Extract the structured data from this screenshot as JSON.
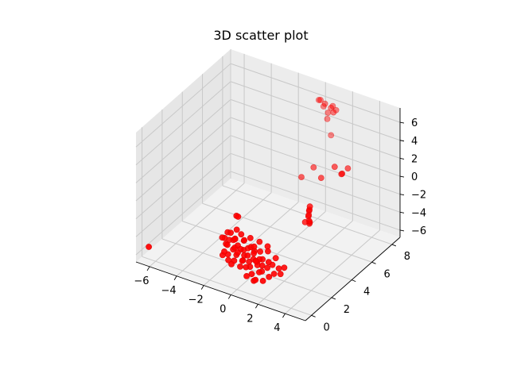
{
  "chart_data": {
    "type": "scatter",
    "projection": "3d",
    "title": "3D scatter plot",
    "xlabel": "",
    "ylabel": "",
    "zlabel": "",
    "xlim": [
      -7,
      5.5
    ],
    "ylim": [
      -0.6,
      8.8
    ],
    "zlim": [
      -6.8,
      7.6
    ],
    "xticks": [
      -6,
      -4,
      -2,
      0,
      2,
      4
    ],
    "yticks": [
      0,
      2,
      4,
      6,
      8
    ],
    "zticks": [
      -6,
      -4,
      -2,
      0,
      2,
      4,
      6
    ],
    "grid": true,
    "color": "#ff0000",
    "series": [
      {
        "points": [
          [
            -6.8,
            0.4,
            -6.0
          ],
          [
            0.4,
            7.6,
            7.0
          ],
          [
            0.6,
            7.5,
            7.2
          ],
          [
            1.0,
            7.4,
            7.1
          ],
          [
            1.5,
            7.5,
            7.0
          ],
          [
            1.3,
            7.6,
            6.6
          ],
          [
            0.6,
            7.8,
            6.2
          ],
          [
            1.0,
            7.7,
            5.8
          ],
          [
            1.6,
            7.7,
            6.4
          ],
          [
            1.7,
            7.3,
            6.6
          ],
          [
            0.8,
            7.9,
            4.8
          ],
          [
            1.0,
            8.0,
            3.0
          ],
          [
            3.2,
            5.4,
            3.2
          ],
          [
            4.1,
            5.5,
            3.4
          ],
          [
            4.0,
            5.0,
            3.2
          ],
          [
            3.9,
            5.2,
            3.0
          ],
          [
            1.2,
            6.0,
            1.5
          ],
          [
            2.5,
            5.0,
            2.0
          ],
          [
            0.6,
            5.6,
            0.5
          ],
          [
            3.3,
            2.8,
            1.4
          ],
          [
            3.1,
            3.0,
            0.6
          ],
          [
            3.0,
            3.1,
            0.0
          ],
          [
            3.1,
            3.0,
            -0.5
          ],
          [
            3.0,
            3.2,
            -0.9
          ],
          [
            2.8,
            3.0,
            -0.8
          ],
          [
            2.9,
            3.3,
            -1.2
          ],
          [
            3.2,
            2.9,
            0.9
          ],
          [
            2.9,
            3.2,
            -0.3
          ],
          [
            -1.0,
            1.3,
            -0.4
          ],
          [
            -0.8,
            1.2,
            -0.3
          ],
          [
            -1.8,
            1.2,
            -3.2
          ],
          [
            -1.6,
            1.4,
            -3.5
          ],
          [
            -1.7,
            1.2,
            -3.8
          ],
          [
            -1.9,
            1.1,
            -3.1
          ],
          [
            -1.5,
            1.1,
            -2.3
          ],
          [
            -1.2,
            1.0,
            -2.1
          ],
          [
            -0.8,
            0.9,
            -2.5
          ],
          [
            -0.5,
            1.1,
            -2.0
          ],
          [
            -0.2,
            1.0,
            -2.4
          ],
          [
            0.1,
            1.2,
            -2.2
          ],
          [
            -1.0,
            1.0,
            -2.8
          ],
          [
            -0.6,
            0.9,
            -3.1
          ],
          [
            -0.3,
            1.1,
            -2.6
          ],
          [
            0.3,
            1.0,
            -2.9
          ],
          [
            0.6,
            0.9,
            -2.6
          ],
          [
            0.9,
            1.1,
            -3.2
          ],
          [
            -1.3,
            0.8,
            -3.3
          ],
          [
            -0.9,
            1.0,
            -3.6
          ],
          [
            -0.4,
            0.9,
            -3.4
          ],
          [
            0.2,
            0.8,
            -3.7
          ],
          [
            0.5,
            1.0,
            -3.5
          ],
          [
            1.0,
            0.9,
            -3.8
          ],
          [
            -1.1,
            1.1,
            -4.0
          ],
          [
            -0.7,
            0.9,
            -4.2
          ],
          [
            -0.2,
            1.0,
            -4.1
          ],
          [
            0.4,
            1.1,
            -4.3
          ],
          [
            0.8,
            0.8,
            -4.0
          ],
          [
            1.2,
            0.9,
            -4.4
          ],
          [
            -1.4,
            1.0,
            -4.6
          ],
          [
            -0.8,
            0.8,
            -4.8
          ],
          [
            -0.3,
            1.0,
            -4.7
          ],
          [
            0.3,
            0.9,
            -5.0
          ],
          [
            0.7,
            1.1,
            -4.8
          ],
          [
            1.1,
            1.0,
            -5.2
          ],
          [
            -1.0,
            0.8,
            -5.3
          ],
          [
            -0.5,
            1.0,
            -5.5
          ],
          [
            0.0,
            0.9,
            -5.2
          ],
          [
            0.5,
            0.8,
            -5.6
          ],
          [
            0.9,
            1.0,
            -5.4
          ],
          [
            -0.6,
            0.9,
            -3.9
          ],
          [
            0.0,
            1.1,
            -3.3
          ],
          [
            0.6,
            1.2,
            -4.6
          ],
          [
            -0.2,
            0.8,
            -4.5
          ],
          [
            1.4,
            1.2,
            -3.0
          ],
          [
            1.6,
            1.0,
            -3.9
          ],
          [
            1.5,
            1.0,
            -4.6
          ],
          [
            1.8,
            1.1,
            -4.2
          ],
          [
            2.0,
            1.0,
            -5.0
          ],
          [
            1.7,
            0.9,
            -5.4
          ],
          [
            2.2,
            1.2,
            -4.5
          ],
          [
            1.9,
            1.3,
            -3.6
          ],
          [
            -1.6,
            0.9,
            -4.3
          ],
          [
            -1.8,
            1.0,
            -4.9
          ],
          [
            -1.3,
            0.9,
            -5.1
          ],
          [
            1.3,
            1.3,
            -2.6
          ],
          [
            -0.9,
            1.2,
            -1.8
          ],
          [
            2.6,
            1.2,
            -4.2
          ],
          [
            2.4,
            1.1,
            -4.9
          ],
          [
            0.8,
            0.6,
            -6.0
          ],
          [
            1.0,
            0.5,
            -5.7
          ],
          [
            0.2,
            0.7,
            -5.9
          ],
          [
            1.4,
            0.7,
            -5.8
          ],
          [
            0.0,
            1.2,
            -4.9
          ],
          [
            -0.4,
            1.2,
            -3.8
          ],
          [
            0.4,
            1.2,
            -3.5
          ],
          [
            1.0,
            1.2,
            -4.1
          ],
          [
            -1.1,
            1.3,
            -3.0
          ],
          [
            0.7,
            1.3,
            -2.4
          ]
        ]
      }
    ]
  }
}
